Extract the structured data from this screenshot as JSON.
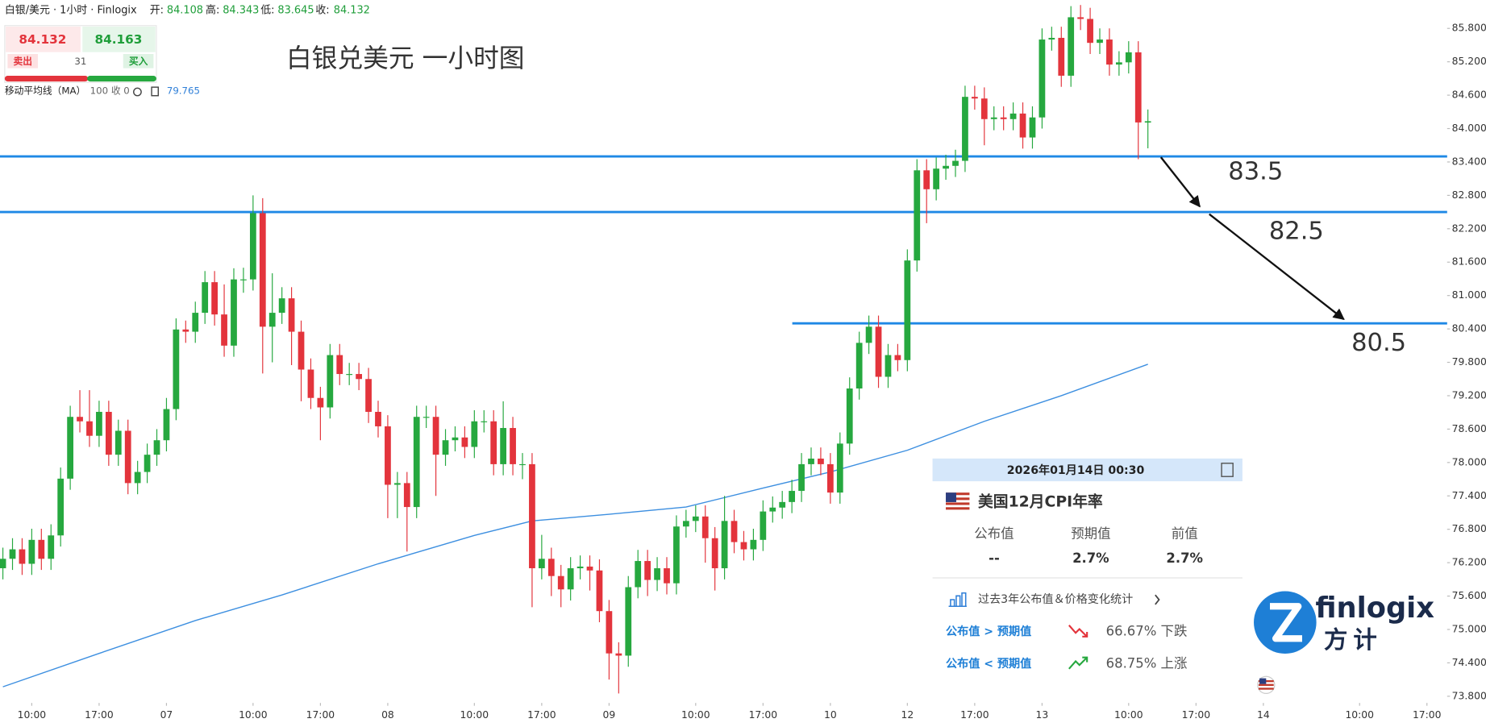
{
  "header": {
    "symbol": "白银/美元 · 1小时 · Finlogix",
    "open_label": "开:",
    "high_label": "高:",
    "low_label": "低:",
    "close_label": "收:"
  },
  "quote": {
    "sell_label": "卖出",
    "buy_label": "买入",
    "buy": 84.163,
    "spread": 31
  },
  "indicator": {
    "name": "移动平均线（MA）",
    "params": "100 收 0"
  },
  "annotation": "白银兑美元 一小时图",
  "event": {
    "datetime": "2026年01月14日 00:30",
    "title": "美国12月CPI年率",
    "columns": [
      "公布值",
      "预期值",
      "前值"
    ],
    "values": [
      "--",
      "2.7%",
      "2.7%"
    ],
    "stats_link": "过去3年公布值＆价格变化统计",
    "rows": [
      {
        "label": "公布值 > 预期值",
        "text": "66.67% 下跌"
      },
      {
        "label": "公布值 < 预期值",
        "text": "68.75% 上涨"
      }
    ]
  },
  "logo": {
    "name": "finlogix",
    "cn": "方计"
  },
  "chart_data": {
    "type": "candlestick",
    "up_color": "#26a83f",
    "down_color": "#e3343c",
    "open": [
      76.1,
      76.27,
      76.44,
      76.18,
      76.61,
      76.27,
      76.69,
      77.71,
      78.82,
      78.74,
      78.48,
      78.91,
      78.14,
      78.57,
      77.63,
      77.83,
      78.14,
      78.4,
      78.96,
      80.39,
      80.35,
      80.69,
      81.24,
      80.66,
      80.1,
      81.29,
      81.29,
      82.48,
      80.44,
      80.69,
      80.95,
      80.35,
      79.67,
      79.16,
      78.99,
      79.93,
      79.59,
      79.59,
      79.5,
      78.91,
      78.65,
      77.6,
      77.63,
      77.2,
      78.82,
      78.82,
      78.14,
      78.4,
      78.45,
      78.28,
      78.74,
      78.74,
      77.97,
      78.62,
      77.97,
      77.97,
      76.1,
      76.27,
      75.96,
      75.72,
      76.1,
      76.13,
      76.06,
      75.33,
      74.57,
      74.53,
      75.76,
      76.23,
      75.89,
      76.1,
      75.83,
      76.85,
      76.95,
      77.03,
      76.64,
      76.1,
      76.95,
      76.57,
      76.44,
      76.61,
      77.12,
      77.19,
      77.29,
      77.49,
      77.97,
      78.07,
      77.97,
      77.46,
      78.34,
      79.33,
      80.15,
      80.44,
      79.54,
      79.93,
      79.84,
      81.63,
      83.25,
      82.91,
      83.28,
      83.33,
      83.42,
      84.57,
      84.54,
      84.17,
      84.2,
      84.17,
      84.27,
      83.84,
      84.2,
      85.6,
      85.63,
      84.95,
      86.0,
      85.97,
      85.54,
      85.6,
      85.15,
      85.19,
      85.37,
      84.108
    ],
    "high": [
      76.47,
      76.64,
      76.64,
      76.81,
      76.81,
      76.89,
      77.91,
      79.02,
      79.3,
      79.3,
      79.11,
      79.11,
      78.77,
      78.77,
      78.03,
      78.34,
      78.6,
      79.16,
      80.59,
      80.55,
      80.89,
      81.44,
      81.44,
      81.2,
      81.49,
      81.5,
      82.8,
      82.75,
      81.4,
      81.15,
      81.15,
      80.55,
      79.87,
      79.36,
      80.13,
      80.13,
      79.79,
      79.79,
      79.7,
      79.11,
      78.85,
      77.83,
      77.83,
      79.02,
      79.02,
      79.02,
      78.6,
      78.65,
      78.65,
      78.94,
      78.94,
      78.94,
      79.1,
      78.82,
      78.17,
      78.17,
      76.7,
      76.47,
      76.16,
      76.3,
      76.33,
      76.33,
      76.26,
      75.53,
      74.77,
      75.96,
      76.43,
      76.43,
      76.3,
      76.3,
      77.05,
      77.15,
      77.23,
      77.23,
      76.84,
      77.4,
      77.15,
      76.77,
      76.81,
      77.32,
      77.39,
      77.49,
      77.69,
      78.17,
      78.27,
      78.27,
      78.17,
      78.54,
      79.53,
      80.35,
      80.64,
      80.64,
      80.13,
      80.13,
      81.83,
      83.45,
      83.45,
      83.48,
      83.53,
      83.62,
      84.77,
      84.77,
      84.74,
      84.4,
      84.4,
      84.47,
      84.47,
      84.4,
      85.8,
      85.83,
      85.83,
      86.2,
      86.22,
      86.17,
      85.8,
      85.8,
      85.39,
      85.57,
      85.57,
      84.343
    ],
    "low": [
      75.9,
      76.07,
      75.98,
      75.98,
      76.07,
      76.07,
      76.49,
      77.51,
      78.54,
      78.28,
      78.28,
      77.94,
      77.94,
      77.43,
      77.43,
      77.63,
      77.94,
      78.2,
      78.76,
      80.15,
      80.15,
      80.49,
      80.46,
      79.9,
      79.9,
      81.05,
      81.09,
      79.6,
      79.8,
      80.49,
      79.75,
      79.1,
      78.96,
      78.4,
      78.79,
      79.39,
      79.39,
      79.3,
      78.71,
      78.45,
      77.0,
      77.0,
      76.4,
      77.0,
      78.62,
      77.4,
      77.94,
      78.2,
      78.08,
      78.08,
      78.54,
      77.77,
      77.77,
      77.77,
      77.7,
      75.4,
      75.9,
      75.6,
      75.4,
      75.52,
      75.9,
      75.7,
      75.13,
      74.1,
      73.85,
      74.33,
      75.56,
      75.6,
      75.69,
      75.63,
      75.63,
      76.65,
      76.75,
      76.2,
      75.7,
      75.9,
      76.37,
      76.24,
      76.24,
      76.41,
      76.92,
      76.99,
      77.09,
      77.29,
      77.77,
      77.77,
      77.26,
      77.26,
      78.14,
      79.13,
      79.95,
      79.34,
      79.34,
      79.64,
      79.64,
      81.43,
      82.3,
      82.71,
      83.08,
      83.13,
      83.22,
      84.34,
      83.7,
      83.97,
      83.97,
      83.97,
      83.64,
      83.64,
      84.0,
      85.4,
      84.75,
      84.75,
      85.77,
      85.34,
      85.34,
      84.95,
      84.95,
      84.99,
      83.45,
      83.645
    ],
    "close": [
      76.27,
      76.44,
      76.18,
      76.61,
      76.27,
      76.69,
      77.71,
      78.82,
      78.74,
      78.48,
      78.91,
      78.14,
      78.57,
      77.63,
      77.83,
      78.14,
      78.4,
      78.96,
      80.39,
      80.35,
      80.69,
      81.24,
      80.66,
      80.1,
      81.29,
      81.29,
      82.48,
      80.44,
      80.69,
      80.95,
      80.35,
      79.67,
      79.16,
      78.99,
      79.93,
      79.59,
      79.59,
      79.5,
      78.91,
      78.65,
      77.6,
      77.63,
      77.2,
      78.82,
      78.82,
      78.14,
      78.4,
      78.45,
      78.28,
      78.74,
      78.74,
      77.97,
      78.62,
      77.97,
      77.97,
      76.1,
      76.27,
      75.96,
      75.72,
      76.1,
      76.13,
      76.06,
      75.33,
      74.57,
      74.53,
      75.76,
      76.23,
      75.89,
      76.1,
      75.83,
      76.85,
      76.95,
      77.03,
      76.64,
      76.1,
      76.95,
      76.57,
      76.44,
      76.61,
      77.12,
      77.19,
      77.29,
      77.49,
      77.97,
      78.07,
      77.97,
      77.46,
      78.34,
      79.33,
      80.15,
      80.44,
      79.54,
      79.93,
      79.84,
      81.63,
      83.25,
      82.91,
      83.28,
      83.33,
      83.42,
      84.57,
      84.54,
      84.17,
      84.2,
      84.17,
      84.27,
      83.84,
      84.2,
      85.6,
      85.63,
      84.95,
      86.0,
      85.97,
      85.54,
      85.6,
      85.15,
      85.19,
      85.37,
      84.11,
      84.132
    ],
    "ma": {
      "color": "#3d8fe0",
      "x": [
        0,
        10,
        20,
        29,
        39,
        49,
        55,
        63,
        71,
        79,
        86,
        94,
        102,
        110,
        119
      ],
      "values": [
        73.97,
        74.57,
        75.16,
        75.62,
        76.18,
        76.69,
        76.95,
        77.07,
        77.2,
        77.54,
        77.83,
        78.22,
        78.74,
        79.2,
        79.765
      ]
    },
    "levels": [
      83.5,
      82.5,
      80.5
    ],
    "level_color": "#1e88e5",
    "xlim": [
      -0.3,
      150.1
    ],
    "ylim": [
      73.68,
      86.31
    ],
    "xticks": [
      {
        "value": 3,
        "label": "10:00"
      },
      {
        "value": 10,
        "label": "17:00"
      },
      {
        "value": 17,
        "label": "07"
      },
      {
        "value": 26,
        "label": "10:00"
      },
      {
        "value": 33,
        "label": "17:00"
      },
      {
        "value": 40,
        "label": "08"
      },
      {
        "value": 49,
        "label": "10:00"
      },
      {
        "value": 56,
        "label": "17:00"
      },
      {
        "value": 63,
        "label": "09"
      },
      {
        "value": 72,
        "label": "10:00"
      },
      {
        "value": 79,
        "label": "17:00"
      },
      {
        "value": 86,
        "label": "10"
      },
      {
        "value": 94,
        "label": "12"
      },
      {
        "value": 101,
        "label": "17:00"
      },
      {
        "value": 108,
        "label": "13"
      },
      {
        "value": 117,
        "label": "10:00"
      },
      {
        "value": 124,
        "label": "17:00"
      },
      {
        "value": 131,
        "label": "14"
      },
      {
        "value": 141,
        "label": "10:00"
      },
      {
        "value": 148,
        "label": "17:00"
      }
    ],
    "yticks": [
      {
        "value": 73.8,
        "label": "73.800"
      },
      {
        "value": 74.4,
        "label": "74.400"
      },
      {
        "value": 75,
        "label": "75.000"
      },
      {
        "value": 75.6,
        "label": "75.600"
      },
      {
        "value": 76.2,
        "label": "76.200"
      },
      {
        "value": 76.8,
        "label": "76.800"
      },
      {
        "value": 77.4,
        "label": "77.400"
      },
      {
        "value": 78,
        "label": "78.000"
      },
      {
        "value": 78.6,
        "label": "78.600"
      },
      {
        "value": 79.2,
        "label": "79.200"
      },
      {
        "value": 79.8,
        "label": "79.800"
      },
      {
        "value": 80.4,
        "label": "80.400"
      },
      {
        "value": 81,
        "label": "81.000"
      },
      {
        "value": 81.6,
        "label": "81.600"
      },
      {
        "value": 82.2,
        "label": "82.200"
      },
      {
        "value": 82.8,
        "label": "82.800"
      },
      {
        "value": 83.4,
        "label": "83.400"
      },
      {
        "value": 84,
        "label": "84.000"
      },
      {
        "value": 84.6,
        "label": "84.600"
      },
      {
        "value": 85.2,
        "label": "85.200"
      },
      {
        "value": 85.8,
        "label": "85.800"
      }
    ]
  }
}
